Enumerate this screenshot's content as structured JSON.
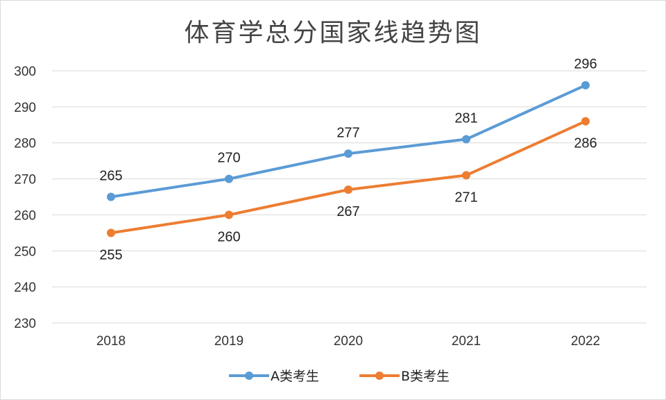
{
  "chart_data": {
    "type": "line",
    "title": "体育学总分国家线趋势图",
    "categories": [
      "2018",
      "2019",
      "2020",
      "2021",
      "2022"
    ],
    "series": [
      {
        "name": "A类考生",
        "values": [
          265,
          270,
          277,
          281,
          296
        ],
        "color": "#5B9BD5"
      },
      {
        "name": "B类考生",
        "values": [
          255,
          260,
          267,
          271,
          286
        ],
        "color": "#ED7D31"
      }
    ],
    "ylim": [
      230,
      300
    ],
    "yticks": [
      230,
      240,
      250,
      260,
      270,
      280,
      290,
      300
    ],
    "grid": true,
    "legend": "bottom",
    "data_labels": true
  }
}
